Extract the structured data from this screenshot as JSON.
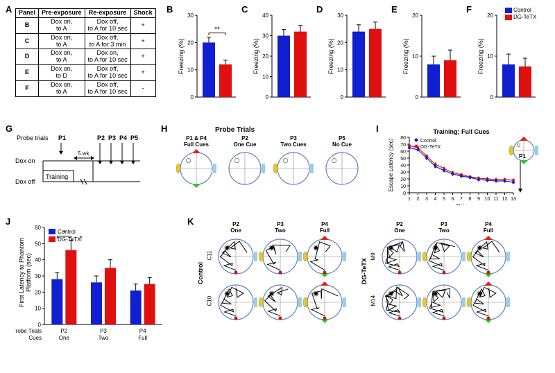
{
  "colors": {
    "control": "#1020d0",
    "dgtetx": "#e01010",
    "axis": "#000000",
    "bg": "#ffffff",
    "cue_red": "#e02020",
    "cue_green": "#30c030",
    "cue_blue": "#30a0d0",
    "cue_yellow": "#e8c830",
    "path_red": "#d01010",
    "path_black": "#000000"
  },
  "legend": {
    "control": "Control",
    "dgtetx": "DG-TeTX"
  },
  "panelA": {
    "label": "A",
    "headers": [
      "Panel",
      "Pre-exposure",
      "Re-exposure",
      "Shock"
    ],
    "rows": [
      [
        "B",
        "Dox on,\nto A",
        "Dox off,\nto A for 10 sec",
        "+"
      ],
      [
        "C",
        "Dox on,\nto A",
        "Dox off,\nto A for 3 min",
        "+"
      ],
      [
        "D",
        "Dox on,\nto A",
        "Dox on,\nto A for 10 sec",
        "+"
      ],
      [
        "E",
        "Dox on,\nto D",
        "Dox off,\nto A for 10 sec",
        "+"
      ],
      [
        "F",
        "Dox on,\nto A",
        "Dox off,\nto A for 10 sec",
        "-"
      ]
    ]
  },
  "barCharts": {
    "ylabel": "Freezing (%)",
    "ymax": 40,
    "ytick": 10,
    "B": {
      "label": "B",
      "ymax": 30,
      "control": 20,
      "dgtetx": 12,
      "err_c": 2,
      "err_d": 1.5,
      "sig": "**"
    },
    "C": {
      "label": "C",
      "ymax": 40,
      "control": 30,
      "dgtetx": 32,
      "err_c": 3,
      "err_d": 3,
      "sig": ""
    },
    "D": {
      "label": "D",
      "ymax": 30,
      "control": 24,
      "dgtetx": 25,
      "err_c": 2.5,
      "err_d": 2.5,
      "sig": ""
    },
    "E": {
      "label": "E",
      "ymax": 20,
      "control": 8,
      "dgtetx": 9,
      "err_c": 2,
      "err_d": 2.5,
      "sig": ""
    },
    "F": {
      "label": "F",
      "ymax": 20,
      "control": 8,
      "dgtetx": 7.5,
      "err_c": 2.5,
      "err_d": 2,
      "sig": ""
    }
  },
  "panelG": {
    "label": "G",
    "probe_label": "Probe trials",
    "p1": "P1",
    "p2": "P2",
    "p3": "P3",
    "p4": "P4",
    "p5": "P5",
    "dox_on": "Dox on",
    "dox_off": "Dox off",
    "training": "Training",
    "interval": "5 wk"
  },
  "panelH": {
    "label": "H",
    "title": "Probe Trials",
    "items": [
      {
        "name": "P1 & P4",
        "sub": "Full Cues",
        "cues": [
          true,
          true,
          true,
          true
        ]
      },
      {
        "name": "P2",
        "sub": "One Cue",
        "cues": [
          false,
          true,
          false,
          false
        ]
      },
      {
        "name": "P3",
        "sub": "Two Cues",
        "cues": [
          false,
          true,
          false,
          true
        ]
      },
      {
        "name": "P5",
        "sub": "No Cue",
        "cues": [
          false,
          false,
          false,
          false
        ]
      }
    ]
  },
  "panelI": {
    "label": "I",
    "title": "Training; Full Cues",
    "ylabel": "Escape Latency (sec)",
    "xlabel": "Day",
    "ymax": 80,
    "ytick": 10,
    "days": [
      1,
      2,
      3,
      4,
      5,
      6,
      7,
      8,
      9,
      10,
      11,
      12,
      13
    ],
    "control": [
      65,
      62,
      50,
      38,
      32,
      27,
      24,
      22,
      19,
      18,
      17,
      17,
      15
    ],
    "dgtetx": [
      68,
      65,
      53,
      41,
      35,
      29,
      26,
      23,
      21,
      20,
      19,
      19,
      18
    ],
    "err": 3,
    "p1_label": "P1"
  },
  "panelJ": {
    "label": "J",
    "ylabel": "First Latency to Phantom\nPlatform (sec)",
    "ymax": 60,
    "ytick": 10,
    "xlabel": "Probe Trials\nCues",
    "groups": [
      {
        "name": "P2",
        "sub": "One",
        "control": 28,
        "dgtetx": 46,
        "ec": 4,
        "ed": 6,
        "sig": "*",
        "dag": "†"
      },
      {
        "name": "P3",
        "sub": "Two",
        "control": 26,
        "dgtetx": 35,
        "ec": 4,
        "ed": 5,
        "sig": "",
        "dag": ""
      },
      {
        "name": "P4",
        "sub": "Full",
        "control": 21,
        "dgtetx": 25,
        "ec": 4,
        "ed": 4,
        "sig": "",
        "dag": ""
      }
    ]
  },
  "panelK": {
    "label": "K",
    "columns": [
      "P2\nOne",
      "P3\nTwo",
      "P4\nFull"
    ],
    "left_group": "Control",
    "right_group": "DG-TeTX",
    "left_ids": [
      "C11",
      "C10"
    ],
    "right_ids": [
      "M9",
      "M14"
    ]
  }
}
